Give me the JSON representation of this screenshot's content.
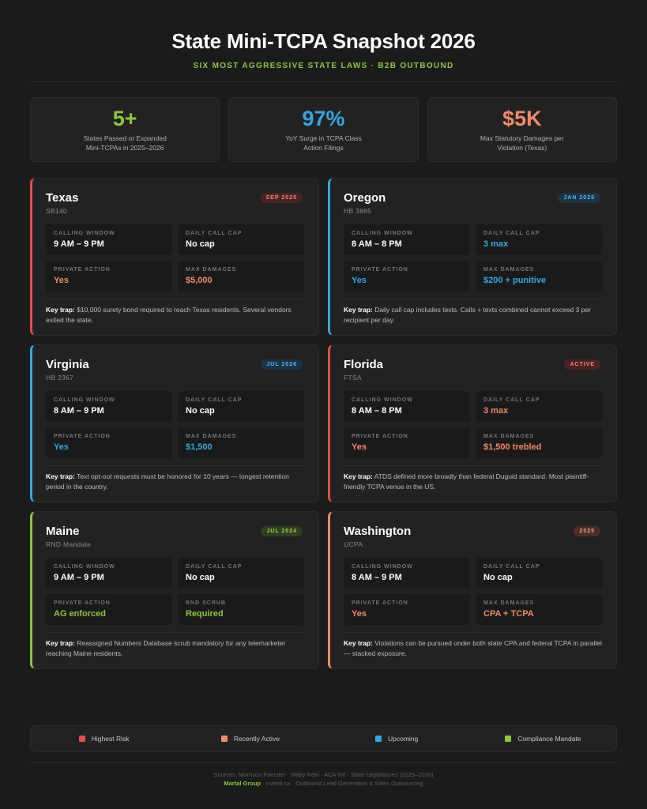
{
  "header": {
    "title": "State Mini-TCPA Snapshot 2026",
    "subtitle": "Six Most Aggressive State Laws · B2B Outbound"
  },
  "stats": [
    {
      "value": "5+",
      "label": "States Passed or Expanded Mini-TCPAs in 2025–2026",
      "color": "#8cc63f"
    },
    {
      "value": "97%",
      "label": "YoY Surge in TCPA Class Action Filings",
      "color": "#35a7e0"
    },
    {
      "value": "$5K",
      "label": "Max Statutory Damages per Violation (Texas)",
      "color": "#ee8a6b"
    }
  ],
  "colors": {
    "red": "#e14d4d",
    "orange": "#ee8a6b",
    "blue": "#35a7e0",
    "green": "#8cc63f",
    "white": "#ffffff"
  },
  "states": [
    {
      "name": "Texas",
      "code": "SB140",
      "badge": "SEP 2025",
      "accent": "red",
      "cells": [
        {
          "label": "Calling Window",
          "value": "9 AM – 9 PM",
          "color": "white"
        },
        {
          "label": "Daily Call Cap",
          "value": "No cap",
          "color": "white"
        },
        {
          "label": "Private Action",
          "value": "Yes",
          "color": "orange"
        },
        {
          "label": "Max Damages",
          "value": "$5,000",
          "color": "orange"
        }
      ],
      "trap_label": "Key trap:",
      "trap_text": "$10,000 surety bond required to reach Texas residents. Several vendors exited the state."
    },
    {
      "name": "Oregon",
      "code": "HB 3865",
      "badge": "JAN 2026",
      "accent": "blue",
      "cells": [
        {
          "label": "Calling Window",
          "value": "8 AM – 8 PM",
          "color": "white"
        },
        {
          "label": "Daily Call Cap",
          "value": "3 max",
          "color": "blue"
        },
        {
          "label": "Private Action",
          "value": "Yes",
          "color": "blue"
        },
        {
          "label": "Max Damages",
          "value": "$200 + punitive",
          "color": "blue"
        }
      ],
      "trap_label": "Key trap:",
      "trap_text": "Daily call cap includes texts. Calls + texts combined cannot exceed 3 per recipient per day."
    },
    {
      "name": "Virginia",
      "code": "HB 2367",
      "badge": "JUL 2026",
      "accent": "blue",
      "cells": [
        {
          "label": "Calling Window",
          "value": "8 AM – 9 PM",
          "color": "white"
        },
        {
          "label": "Daily Call Cap",
          "value": "No cap",
          "color": "white"
        },
        {
          "label": "Private Action",
          "value": "Yes",
          "color": "blue"
        },
        {
          "label": "Max Damages",
          "value": "$1,500",
          "color": "blue"
        }
      ],
      "trap_label": "Key trap:",
      "trap_text": "Text opt-out requests must be honored for 10 years — longest retention period in the country."
    },
    {
      "name": "Florida",
      "code": "FTSA",
      "badge": "ACTIVE",
      "accent": "red",
      "cells": [
        {
          "label": "Calling Window",
          "value": "8 AM – 8 PM",
          "color": "white"
        },
        {
          "label": "Daily Call Cap",
          "value": "3 max",
          "color": "orange"
        },
        {
          "label": "Private Action",
          "value": "Yes",
          "color": "orange"
        },
        {
          "label": "Max Damages",
          "value": "$1,500 trebled",
          "color": "orange"
        }
      ],
      "trap_label": "Key trap:",
      "trap_text": "ATDS defined more broadly than federal Duguid standard. Most plaintiff-friendly TCPA venue in the US."
    },
    {
      "name": "Maine",
      "code": "RND Mandate",
      "badge": "JUL 2024",
      "accent": "green",
      "cells": [
        {
          "label": "Calling Window",
          "value": "9 AM – 9 PM",
          "color": "white"
        },
        {
          "label": "Daily Call Cap",
          "value": "No cap",
          "color": "white"
        },
        {
          "label": "Private Action",
          "value": "AG enforced",
          "color": "green"
        },
        {
          "label": "RND Scrub",
          "value": "Required",
          "color": "green"
        }
      ],
      "trap_label": "Key trap:",
      "trap_text": "Reassigned Numbers Database scrub mandatory for any telemarketer reaching Maine residents."
    },
    {
      "name": "Washington",
      "code": "UCPA",
      "badge": "2025",
      "accent": "orange",
      "cells": [
        {
          "label": "Calling Window",
          "value": "8 AM – 9 PM",
          "color": "white"
        },
        {
          "label": "Daily Call Cap",
          "value": "No cap",
          "color": "white"
        },
        {
          "label": "Private Action",
          "value": "Yes",
          "color": "orange"
        },
        {
          "label": "Max Damages",
          "value": "CPA + TCPA",
          "color": "orange"
        }
      ],
      "trap_label": "Key trap:",
      "trap_text": "Violations can be pursued under both state CPA and federal TCPA in parallel — stacked exposure."
    }
  ],
  "legend": [
    {
      "label": "Highest Risk",
      "color": "#e14d4d"
    },
    {
      "label": "Recently Active",
      "color": "#ee8a6b"
    },
    {
      "label": "Upcoming",
      "color": "#35a7e0"
    },
    {
      "label": "Compliance Mandate",
      "color": "#8cc63f"
    }
  ],
  "footer": {
    "sources": "Sources: Morrison Foerster · Wiley Rein · ACA Intl · State Legislatures (2025–2026)",
    "brand": "Martal Group",
    "tail": "· martal.ca · Outbound Lead Generation & Sales Outsourcing"
  }
}
